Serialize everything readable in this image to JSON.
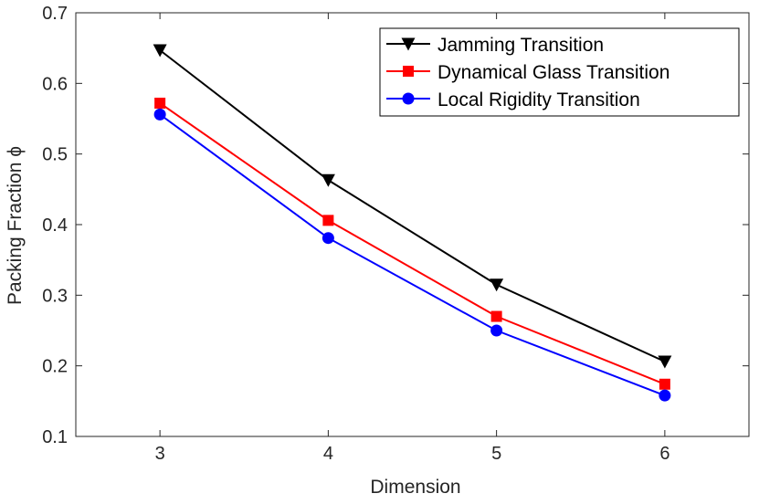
{
  "chart_data": {
    "type": "line",
    "xlabel": "Dimension",
    "ylabel": "Packing Fraction ϕ",
    "xlim": [
      2.5,
      6.5
    ],
    "ylim": [
      0.1,
      0.7
    ],
    "xticks": [
      3,
      4,
      5,
      6
    ],
    "yticks": [
      0.1,
      0.2,
      0.3,
      0.4,
      0.5,
      0.6,
      0.7
    ],
    "x": [
      3,
      4,
      5,
      6
    ],
    "grid": false,
    "legend_position": "top-right",
    "series": [
      {
        "name": "Jamming Transition",
        "values": [
          0.647,
          0.463,
          0.315,
          0.206
        ],
        "color": "#000000",
        "marker": "triangle-down"
      },
      {
        "name": "Dynamical Glass Transition",
        "values": [
          0.572,
          0.406,
          0.27,
          0.174
        ],
        "color": "#ff0000",
        "marker": "square"
      },
      {
        "name": "Local Rigidity Transition",
        "values": [
          0.556,
          0.381,
          0.25,
          0.158
        ],
        "color": "#0000ff",
        "marker": "circle"
      }
    ]
  }
}
